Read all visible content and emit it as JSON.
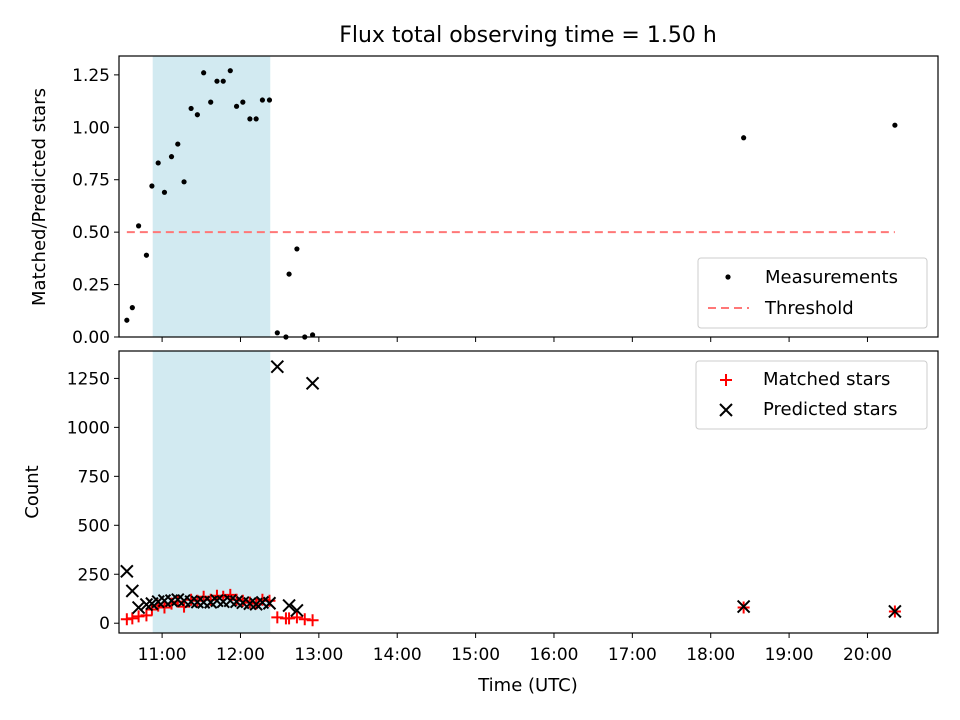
{
  "figure": {
    "title": "Flux total observing time = 1.50 h"
  },
  "chart_data": [
    {
      "type": "scatter",
      "ylabel": "Matched/Predicted stars",
      "xlim": [
        10.45,
        20.9
      ],
      "ylim": [
        0,
        1.34
      ],
      "yticks": [
        0.0,
        0.25,
        0.5,
        0.75,
        1.0,
        1.25
      ],
      "ytick_labels": [
        "0.00",
        "0.25",
        "0.50",
        "0.75",
        "1.00",
        "1.25"
      ],
      "highlight_span": [
        10.88,
        12.38
      ],
      "highlight_color": "#add8e6",
      "legend_position": "lower right",
      "series": [
        {
          "name": "Measurements",
          "color": "#000000",
          "marker": "dot",
          "points": [
            [
              10.55,
              0.08
            ],
            [
              10.62,
              0.14
            ],
            [
              10.7,
              0.53
            ],
            [
              10.8,
              0.39
            ],
            [
              10.87,
              0.72
            ],
            [
              10.95,
              0.83
            ],
            [
              11.03,
              0.69
            ],
            [
              11.12,
              0.86
            ],
            [
              11.2,
              0.92
            ],
            [
              11.28,
              0.74
            ],
            [
              11.37,
              1.09
            ],
            [
              11.45,
              1.06
            ],
            [
              11.53,
              1.26
            ],
            [
              11.62,
              1.12
            ],
            [
              11.7,
              1.22
            ],
            [
              11.78,
              1.22
            ],
            [
              11.87,
              1.27
            ],
            [
              11.95,
              1.1
            ],
            [
              12.03,
              1.12
            ],
            [
              12.12,
              1.04
            ],
            [
              12.2,
              1.04
            ],
            [
              12.28,
              1.13
            ],
            [
              12.37,
              1.13
            ],
            [
              12.47,
              0.02
            ],
            [
              12.58,
              0.0
            ],
            [
              12.62,
              0.3
            ],
            [
              12.72,
              0.42
            ],
            [
              12.82,
              0.0
            ],
            [
              12.92,
              0.01
            ],
            [
              18.42,
              0.95
            ],
            [
              20.35,
              1.01
            ]
          ]
        },
        {
          "name": "Threshold",
          "color": "#ff7777",
          "line_style": "dashed",
          "points": [
            [
              10.55,
              0.5
            ],
            [
              20.35,
              0.5
            ]
          ]
        }
      ]
    },
    {
      "type": "scatter",
      "xlabel": "Time (UTC)",
      "ylabel": "Count",
      "xlim": [
        10.45,
        20.9
      ],
      "ylim": [
        -50,
        1390
      ],
      "yticks": [
        0,
        250,
        500,
        750,
        1000,
        1250
      ],
      "ytick_labels": [
        "0",
        "250",
        "500",
        "750",
        "1000",
        "1250"
      ],
      "xticks": [
        11,
        12,
        13,
        14,
        15,
        16,
        17,
        18,
        19,
        20
      ],
      "xtick_labels": [
        "11:00",
        "12:00",
        "13:00",
        "14:00",
        "15:00",
        "16:00",
        "17:00",
        "18:00",
        "19:00",
        "20:00"
      ],
      "highlight_span": [
        10.88,
        12.38
      ],
      "highlight_color": "#add8e6",
      "legend_position": "upper right",
      "series": [
        {
          "name": "Matched stars",
          "color": "#ff0000",
          "marker": "plus",
          "points": [
            [
              10.55,
              20
            ],
            [
              10.62,
              25
            ],
            [
              10.7,
              35
            ],
            [
              10.8,
              40
            ],
            [
              10.87,
              70
            ],
            [
              10.95,
              90
            ],
            [
              11.03,
              80
            ],
            [
              11.12,
              100
            ],
            [
              11.2,
              110
            ],
            [
              11.28,
              85
            ],
            [
              11.37,
              120
            ],
            [
              11.45,
              115
            ],
            [
              11.53,
              135
            ],
            [
              11.62,
              120
            ],
            [
              11.7,
              140
            ],
            [
              11.78,
              135
            ],
            [
              11.87,
              145
            ],
            [
              11.95,
              120
            ],
            [
              12.03,
              115
            ],
            [
              12.12,
              105
            ],
            [
              12.2,
              100
            ],
            [
              12.28,
              120
            ],
            [
              12.37,
              115
            ],
            [
              12.47,
              30
            ],
            [
              12.58,
              25
            ],
            [
              12.62,
              25
            ],
            [
              12.72,
              30
            ],
            [
              12.82,
              20
            ],
            [
              12.92,
              15
            ],
            [
              18.42,
              80
            ],
            [
              20.35,
              60
            ]
          ]
        },
        {
          "name": "Predicted stars",
          "color": "#000000",
          "marker": "x",
          "points": [
            [
              10.55,
              265
            ],
            [
              10.62,
              165
            ],
            [
              10.7,
              80
            ],
            [
              10.8,
              95
            ],
            [
              10.87,
              100
            ],
            [
              10.95,
              110
            ],
            [
              11.03,
              115
            ],
            [
              11.12,
              115
            ],
            [
              11.2,
              120
            ],
            [
              11.28,
              115
            ],
            [
              11.37,
              110
            ],
            [
              11.45,
              108
            ],
            [
              11.53,
              107
            ],
            [
              11.62,
              107
            ],
            [
              11.7,
              115
            ],
            [
              11.78,
              110
            ],
            [
              11.87,
              115
            ],
            [
              11.95,
              110
            ],
            [
              12.03,
              105
            ],
            [
              12.12,
              100
            ],
            [
              12.2,
              97
            ],
            [
              12.28,
              106
            ],
            [
              12.37,
              102
            ],
            [
              12.47,
              1310
            ],
            [
              12.62,
              90
            ],
            [
              12.72,
              65
            ],
            [
              12.92,
              1225
            ],
            [
              18.42,
              85
            ],
            [
              20.35,
              60
            ]
          ]
        }
      ]
    }
  ]
}
